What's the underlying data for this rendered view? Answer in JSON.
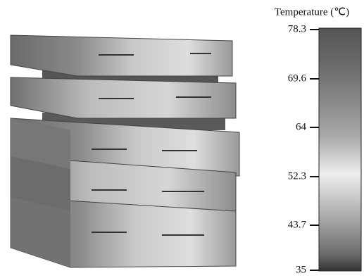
{
  "colorbar": {
    "title": "Temperature (℃)",
    "tick_labels": [
      "78.3",
      "69.6",
      "64",
      "52.3",
      "43.7",
      "35"
    ]
  }
}
